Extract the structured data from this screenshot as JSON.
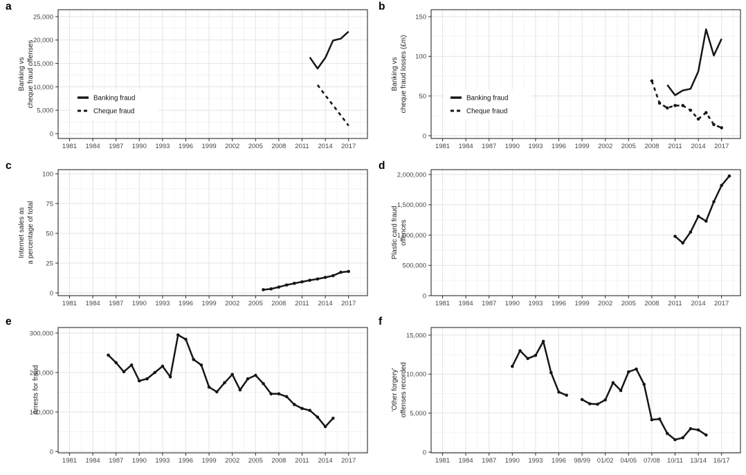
{
  "figure": {
    "background": "#ffffff",
    "line_color": "#161616",
    "grid_major_color": "#e3e3e3",
    "grid_minor_color": "#f0f0f0",
    "border_color": "#2b2b2b",
    "tick_label_color": "#454545"
  },
  "chart_data": [
    {
      "panel": "a",
      "type": "line",
      "ylabel": "Banking vs\ncheque fraud offenses",
      "x_tick_labels": [
        "1981",
        "1984",
        "1987",
        "1990",
        "1993",
        "1996",
        "1999",
        "2002",
        "2005",
        "2008",
        "2011",
        "2014",
        "2017"
      ],
      "x_tick_values": [
        1981,
        1984,
        1987,
        1990,
        1993,
        1996,
        1999,
        2002,
        2005,
        2008,
        2011,
        2014,
        2017
      ],
      "y_tick_labels": [
        "0",
        "5,000",
        "10,000",
        "15,000",
        "20,000",
        "25,000"
      ],
      "y_tick_values": [
        0,
        5000,
        10000,
        15000,
        20000,
        25000
      ],
      "grid": true,
      "legend_position": "left-center",
      "legend": [
        {
          "label": "Banking fraud",
          "style": "solid"
        },
        {
          "label": "Cheque fraud",
          "style": "dashed"
        }
      ],
      "series": [
        {
          "name": "Banking fraud",
          "style": "solid",
          "markers": false,
          "x": [
            2012,
            2013,
            2014,
            2015,
            2016,
            2017
          ],
          "y": [
            16300,
            13900,
            16200,
            19900,
            20300,
            21800
          ]
        },
        {
          "name": "Cheque fraud",
          "style": "dashed",
          "markers": false,
          "x": [
            2013,
            2014,
            2015,
            2016,
            2017
          ],
          "y": [
            10400,
            8200,
            6050,
            3900,
            1700
          ]
        }
      ]
    },
    {
      "panel": "b",
      "type": "line",
      "ylabel": "Banking vs\ncheque fraud losses (£m)",
      "x_tick_labels": [
        "1981",
        "1984",
        "1987",
        "1990",
        "1993",
        "1996",
        "1999",
        "2002",
        "2005",
        "2008",
        "2011",
        "2014",
        "2017"
      ],
      "x_tick_values": [
        1981,
        1984,
        1987,
        1990,
        1993,
        1996,
        1999,
        2002,
        2005,
        2008,
        2011,
        2014,
        2017
      ],
      "y_tick_labels": [
        "0",
        "50",
        "100",
        "150"
      ],
      "y_tick_values": [
        0,
        50,
        100,
        150
      ],
      "grid": true,
      "legend_position": "left-center",
      "legend": [
        {
          "label": "Banking fraud",
          "style": "solid"
        },
        {
          "label": "Cheque fraud",
          "style": "dashed"
        }
      ],
      "series": [
        {
          "name": "Banking fraud",
          "style": "solid",
          "markers": false,
          "x": [
            2010,
            2011,
            2012,
            2013,
            2014,
            2015,
            2016,
            2017
          ],
          "y": [
            64,
            51,
            57,
            59,
            81,
            134,
            101,
            122
          ]
        },
        {
          "name": "Cheque fraud",
          "style": "dashed",
          "markers": true,
          "x": [
            2008,
            2009,
            2010,
            2011,
            2012,
            2013,
            2014,
            2015,
            2016,
            2017
          ],
          "y": [
            69,
            41,
            35,
            38,
            38,
            32,
            21,
            29,
            14,
            10
          ]
        }
      ]
    },
    {
      "panel": "c",
      "type": "line",
      "ylabel": "Internet sales as\na percentage of total",
      "x_tick_labels": [
        "1981",
        "1984",
        "1987",
        "1990",
        "1993",
        "1996",
        "1999",
        "2002",
        "2005",
        "2008",
        "2011",
        "2014",
        "2017"
      ],
      "x_tick_values": [
        1981,
        1984,
        1987,
        1990,
        1993,
        1996,
        1999,
        2002,
        2005,
        2008,
        2011,
        2014,
        2017
      ],
      "y_tick_labels": [
        "0",
        "25",
        "50",
        "75",
        "100"
      ],
      "y_tick_values": [
        0,
        25,
        50,
        75,
        100
      ],
      "grid": true,
      "series": [
        {
          "name": "Internet sales",
          "style": "solid",
          "markers": true,
          "x": [
            2006,
            2007,
            2008,
            2009,
            2010,
            2011,
            2012,
            2013,
            2014,
            2015,
            2016,
            2017
          ],
          "y": [
            2.7,
            3.4,
            4.9,
            6.6,
            8.0,
            9.3,
            10.6,
            11.7,
            13.0,
            14.5,
            17.3,
            18.0
          ]
        }
      ]
    },
    {
      "panel": "d",
      "type": "line",
      "ylabel": "Plastic card fraud\noffences",
      "x_tick_labels": [
        "1981",
        "1984",
        "1987",
        "1990",
        "1993",
        "1996",
        "1999",
        "2002",
        "2005",
        "2008",
        "2011",
        "2014",
        "2017"
      ],
      "x_tick_values": [
        1981,
        1984,
        1987,
        1990,
        1993,
        1996,
        1999,
        2002,
        2005,
        2008,
        2011,
        2014,
        2017
      ],
      "y_tick_labels": [
        "0",
        "500,000",
        "1,000,000",
        "1,500,000",
        "2,000,000"
      ],
      "y_tick_values": [
        0,
        500000,
        1000000,
        1500000,
        2000000
      ],
      "grid": true,
      "series": [
        {
          "name": "Plastic card fraud",
          "style": "solid",
          "markers": true,
          "x": [
            2011,
            2012,
            2013,
            2014,
            2015,
            2016,
            2017,
            2018
          ],
          "y": [
            980000,
            870000,
            1050000,
            1310000,
            1230000,
            1550000,
            1820000,
            1975000
          ]
        }
      ]
    },
    {
      "panel": "e",
      "type": "line",
      "ylabel": "Arrests for fraud",
      "x_tick_labels": [
        "1981",
        "1984",
        "1987",
        "1990",
        "1993",
        "1996",
        "1999",
        "2002",
        "2005",
        "2008",
        "2011",
        "2014",
        "2017"
      ],
      "x_tick_values": [
        1981,
        1984,
        1987,
        1990,
        1993,
        1996,
        1999,
        2002,
        2005,
        2008,
        2011,
        2014,
        2017
      ],
      "y_tick_labels": [
        "0",
        "100,000",
        "200,000",
        "300,000"
      ],
      "y_tick_values": [
        0,
        100000,
        200000,
        300000
      ],
      "grid": true,
      "series": [
        {
          "name": "Arrests for fraud",
          "style": "solid",
          "markers": true,
          "x": [
            1986,
            1987,
            1988,
            1989,
            1990,
            1991,
            1992,
            1993,
            1994,
            1995,
            1996,
            1997,
            1998,
            1999,
            2000,
            2001,
            2002,
            2003,
            2004,
            2005,
            2006,
            2007,
            2008,
            2009,
            2010,
            2011,
            2012,
            2013,
            2014,
            2015
          ],
          "y": [
            244000,
            225000,
            202000,
            219000,
            179000,
            184000,
            200000,
            216000,
            189000,
            295000,
            284000,
            233000,
            219000,
            163000,
            151000,
            174000,
            195000,
            156000,
            184000,
            193000,
            172000,
            146000,
            146000,
            139000,
            119000,
            109000,
            104000,
            87000,
            63000,
            84000
          ]
        }
      ]
    },
    {
      "panel": "f",
      "type": "line",
      "ylabel": "'Other forgery'\noffenses recorded",
      "x_tick_labels": [
        "1981",
        "1984",
        "1987",
        "1990",
        "1993",
        "1996",
        "98/99",
        "01/02",
        "04/05",
        "07/08",
        "10/11",
        "13/14",
        "16/17"
      ],
      "x_tick_values": [
        1981,
        1984,
        1987,
        1990,
        1993,
        1996,
        1999,
        2002,
        2005,
        2008,
        2011,
        2014,
        2017
      ],
      "y_tick_labels": [
        "0",
        "5,000",
        "10,000",
        "15,000"
      ],
      "y_tick_values": [
        0,
        5000,
        10000,
        15000
      ],
      "grid": true,
      "series": [
        {
          "name": "segment-1",
          "style": "solid",
          "markers": true,
          "x": [
            1990,
            1991,
            1992,
            1993,
            1994,
            1995,
            1996,
            1997
          ],
          "y": [
            11000,
            13000,
            12000,
            12400,
            14200,
            10200,
            7700,
            7300
          ]
        },
        {
          "name": "segment-2",
          "style": "solid",
          "markers": true,
          "x": [
            1999,
            2000,
            2001,
            2002,
            2003,
            2004,
            2005,
            2006,
            2007,
            2008,
            2009,
            2010,
            2011,
            2012,
            2013,
            2014,
            2015
          ],
          "y": [
            6750,
            6200,
            6150,
            6700,
            8900,
            7900,
            10300,
            10650,
            8700,
            4150,
            4250,
            2400,
            1600,
            1850,
            3000,
            2850,
            2200
          ]
        }
      ]
    }
  ]
}
